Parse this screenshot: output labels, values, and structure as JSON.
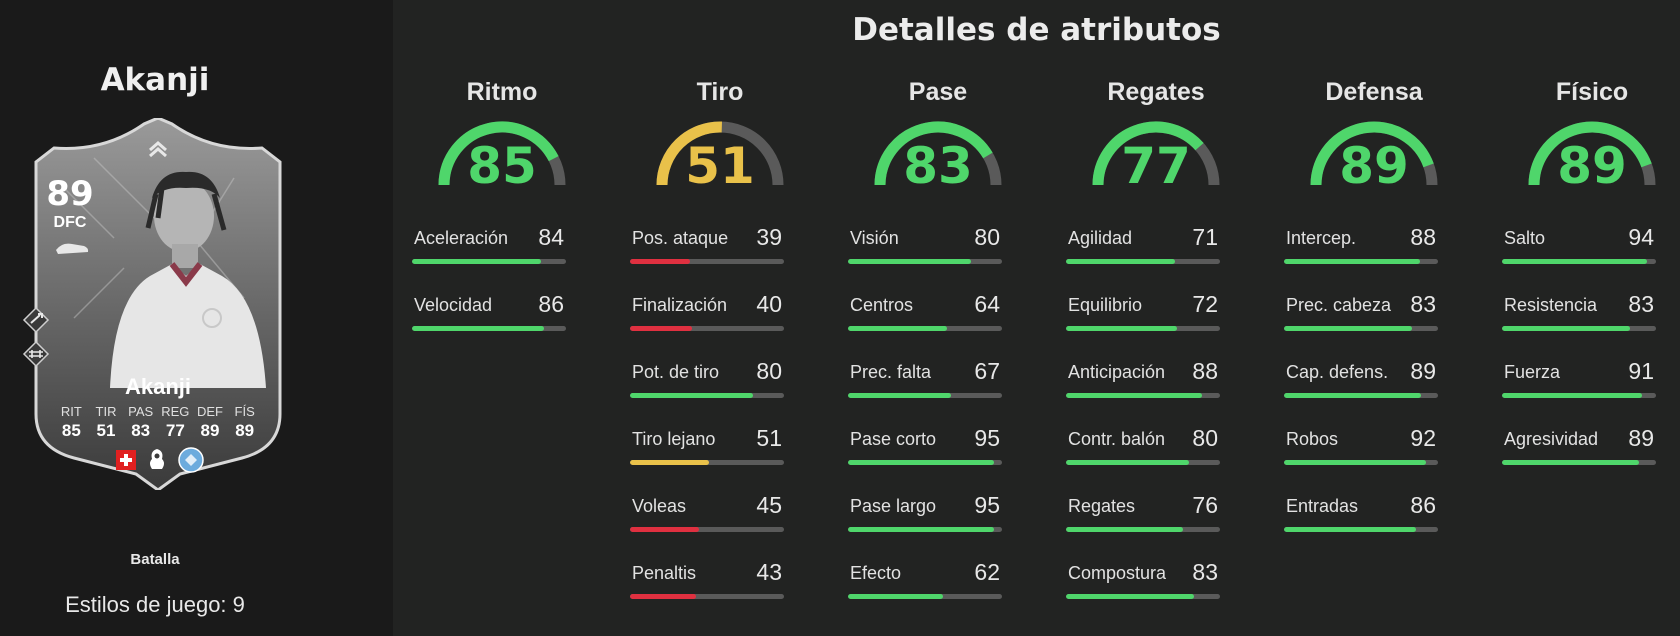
{
  "colors": {
    "green": "#4fd66b",
    "yellow": "#e9c14a",
    "red": "#e03040",
    "track": "#5a5a5a"
  },
  "player": {
    "name": "Akanji",
    "card": {
      "rating": "89",
      "position": "DFC",
      "name": "Akanji",
      "stat_labels": [
        "RIT",
        "TIR",
        "PAS",
        "REG",
        "DEF",
        "FÍS"
      ],
      "stat_values": [
        "85",
        "51",
        "83",
        "77",
        "89",
        "89"
      ],
      "icons": [
        "chevron-up-icon",
        "boot-icon",
        "swiss-flag-icon",
        "premier-league-icon",
        "manchester-city-crest-icon",
        "playstyle-icon",
        "playstyle-icon"
      ]
    },
    "playstyle": "Batalla",
    "playstyles_count": "Estilos de juego: 9"
  },
  "title": "Detalles de atributos",
  "categories": [
    {
      "name": "Ritmo",
      "value": 85,
      "value_text": "85",
      "color": "green",
      "stats": [
        {
          "label": "Aceleración",
          "value": 84,
          "value_text": "84"
        },
        {
          "label": "Velocidad",
          "value": 86,
          "value_text": "86"
        }
      ]
    },
    {
      "name": "Tiro",
      "value": 51,
      "value_text": "51",
      "color": "yellow",
      "stats": [
        {
          "label": "Pos. ataque",
          "value": 39,
          "value_text": "39"
        },
        {
          "label": "Finalización",
          "value": 40,
          "value_text": "40"
        },
        {
          "label": "Pot. de tiro",
          "value": 80,
          "value_text": "80"
        },
        {
          "label": "Tiro lejano",
          "value": 51,
          "value_text": "51"
        },
        {
          "label": "Voleas",
          "value": 45,
          "value_text": "45"
        },
        {
          "label": "Penaltis",
          "value": 43,
          "value_text": "43"
        }
      ]
    },
    {
      "name": "Pase",
      "value": 83,
      "value_text": "83",
      "color": "green",
      "stats": [
        {
          "label": "Visión",
          "value": 80,
          "value_text": "80"
        },
        {
          "label": "Centros",
          "value": 64,
          "value_text": "64"
        },
        {
          "label": "Prec. falta",
          "value": 67,
          "value_text": "67"
        },
        {
          "label": "Pase corto",
          "value": 95,
          "value_text": "95"
        },
        {
          "label": "Pase largo",
          "value": 95,
          "value_text": "95"
        },
        {
          "label": "Efecto",
          "value": 62,
          "value_text": "62"
        }
      ]
    },
    {
      "name": "Regates",
      "value": 77,
      "value_text": "77",
      "color": "green",
      "stats": [
        {
          "label": "Agilidad",
          "value": 71,
          "value_text": "71"
        },
        {
          "label": "Equilibrio",
          "value": 72,
          "value_text": "72"
        },
        {
          "label": "Anticipación",
          "value": 88,
          "value_text": "88"
        },
        {
          "label": "Contr. balón",
          "value": 80,
          "value_text": "80"
        },
        {
          "label": "Regates",
          "value": 76,
          "value_text": "76"
        },
        {
          "label": "Compostura",
          "value": 83,
          "value_text": "83"
        }
      ]
    },
    {
      "name": "Defensa",
      "value": 89,
      "value_text": "89",
      "color": "green",
      "stats": [
        {
          "label": "Intercep.",
          "value": 88,
          "value_text": "88"
        },
        {
          "label": "Prec. cabeza",
          "value": 83,
          "value_text": "83"
        },
        {
          "label": "Cap. defens.",
          "value": 89,
          "value_text": "89"
        },
        {
          "label": "Robos",
          "value": 92,
          "value_text": "92"
        },
        {
          "label": "Entradas",
          "value": 86,
          "value_text": "86"
        }
      ]
    },
    {
      "name": "Físico",
      "value": 89,
      "value_text": "89",
      "color": "green",
      "stats": [
        {
          "label": "Salto",
          "value": 94,
          "value_text": "94"
        },
        {
          "label": "Resistencia",
          "value": 83,
          "value_text": "83"
        },
        {
          "label": "Fuerza",
          "value": 91,
          "value_text": "91"
        },
        {
          "label": "Agresividad",
          "value": 89,
          "value_text": "89"
        }
      ]
    }
  ]
}
